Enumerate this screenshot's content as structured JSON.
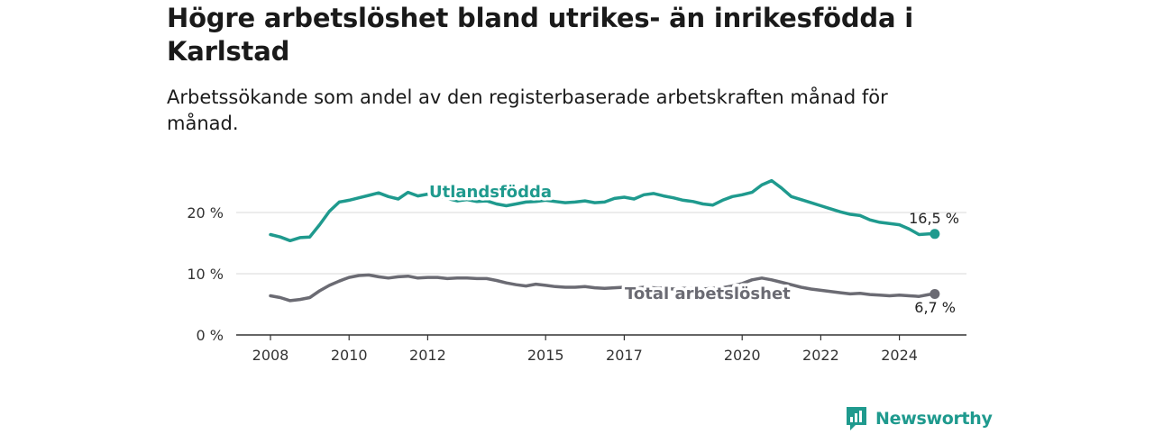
{
  "title": "Högre arbetslöshet bland utrikes- än inrikesfödda i Karlstad",
  "subtitle": "Arbetssökande som andel av den registerbaserade arbetskraften månad för månad.",
  "brand": {
    "name": "Newsworthy",
    "color": "#1f9a8e",
    "icon": "bar-chart-logo-icon"
  },
  "chart_data": {
    "type": "line",
    "title": "Högre arbetslöshet bland utrikes- än inrikesfödda i Karlstad",
    "subtitle": "Arbetssökande som andel av den registerbaserade arbetskraften månad för månad.",
    "xlabel": "",
    "ylabel": "",
    "x_range": [
      2007.75,
      2025.0
    ],
    "ylim": [
      0,
      20
    ],
    "y_ticks": [
      0,
      10,
      20
    ],
    "y_tick_labels": [
      "0 %",
      "10 %",
      "20 %"
    ],
    "x_ticks": [
      2008,
      2010,
      2012,
      2015,
      2017,
      2020,
      2022,
      2024
    ],
    "x_tick_labels": [
      "2008",
      "2010",
      "2012",
      "2015",
      "2017",
      "2020",
      "2022",
      "2024"
    ],
    "grid": true,
    "legend": "none (series labelled directly on the lines)",
    "series": [
      {
        "name": "Utlandsfödda",
        "color": "#1f9a8e",
        "end_label": "16,5 %",
        "points": [
          [
            2008.0,
            16.4
          ],
          [
            2008.25,
            16.0
          ],
          [
            2008.5,
            15.4
          ],
          [
            2008.75,
            15.9
          ],
          [
            2009.0,
            16.0
          ],
          [
            2009.25,
            18.0
          ],
          [
            2009.5,
            20.2
          ],
          [
            2009.75,
            21.7
          ],
          [
            2010.0,
            22.0
          ],
          [
            2010.25,
            22.4
          ],
          [
            2010.5,
            22.8
          ],
          [
            2010.75,
            23.2
          ],
          [
            2011.0,
            22.6
          ],
          [
            2011.25,
            22.2
          ],
          [
            2011.5,
            23.3
          ],
          [
            2011.75,
            22.7
          ],
          [
            2012.0,
            23.0
          ],
          [
            2012.25,
            22.8
          ],
          [
            2012.5,
            22.3
          ],
          [
            2012.75,
            21.9
          ],
          [
            2013.0,
            22.1
          ],
          [
            2013.25,
            21.8
          ],
          [
            2013.5,
            21.9
          ],
          [
            2013.75,
            21.4
          ],
          [
            2014.0,
            21.1
          ],
          [
            2014.25,
            21.4
          ],
          [
            2014.5,
            21.7
          ],
          [
            2014.75,
            21.8
          ],
          [
            2015.0,
            22.0
          ],
          [
            2015.25,
            21.8
          ],
          [
            2015.5,
            21.6
          ],
          [
            2015.75,
            21.7
          ],
          [
            2016.0,
            21.9
          ],
          [
            2016.25,
            21.6
          ],
          [
            2016.5,
            21.7
          ],
          [
            2016.75,
            22.3
          ],
          [
            2017.0,
            22.5
          ],
          [
            2017.25,
            22.2
          ],
          [
            2017.5,
            22.9
          ],
          [
            2017.75,
            23.1
          ],
          [
            2018.0,
            22.7
          ],
          [
            2018.25,
            22.4
          ],
          [
            2018.5,
            22.0
          ],
          [
            2018.75,
            21.8
          ],
          [
            2019.0,
            21.4
          ],
          [
            2019.25,
            21.2
          ],
          [
            2019.5,
            22.0
          ],
          [
            2019.75,
            22.6
          ],
          [
            2020.0,
            22.9
          ],
          [
            2020.25,
            23.3
          ],
          [
            2020.5,
            24.5
          ],
          [
            2020.75,
            25.2
          ],
          [
            2021.0,
            24.0
          ],
          [
            2021.25,
            22.6
          ],
          [
            2021.5,
            22.1
          ],
          [
            2021.75,
            21.6
          ],
          [
            2022.0,
            21.1
          ],
          [
            2022.25,
            20.6
          ],
          [
            2022.5,
            20.1
          ],
          [
            2022.75,
            19.7
          ],
          [
            2023.0,
            19.5
          ],
          [
            2023.25,
            18.8
          ],
          [
            2023.5,
            18.4
          ],
          [
            2023.75,
            18.2
          ],
          [
            2024.0,
            18.0
          ],
          [
            2024.25,
            17.3
          ],
          [
            2024.5,
            16.4
          ],
          [
            2024.75,
            16.5
          ],
          [
            2024.9,
            16.5
          ]
        ]
      },
      {
        "name": "Total arbetslöshet",
        "color": "#6b6b73",
        "end_label": "6,7 %",
        "points": [
          [
            2008.0,
            6.4
          ],
          [
            2008.25,
            6.1
          ],
          [
            2008.5,
            5.6
          ],
          [
            2008.75,
            5.8
          ],
          [
            2009.0,
            6.1
          ],
          [
            2009.25,
            7.2
          ],
          [
            2009.5,
            8.1
          ],
          [
            2009.75,
            8.8
          ],
          [
            2010.0,
            9.4
          ],
          [
            2010.25,
            9.7
          ],
          [
            2010.5,
            9.8
          ],
          [
            2010.75,
            9.5
          ],
          [
            2011.0,
            9.3
          ],
          [
            2011.25,
            9.5
          ],
          [
            2011.5,
            9.6
          ],
          [
            2011.75,
            9.3
          ],
          [
            2012.0,
            9.4
          ],
          [
            2012.25,
            9.4
          ],
          [
            2012.5,
            9.2
          ],
          [
            2012.75,
            9.3
          ],
          [
            2013.0,
            9.3
          ],
          [
            2013.25,
            9.2
          ],
          [
            2013.5,
            9.2
          ],
          [
            2013.75,
            8.9
          ],
          [
            2014.0,
            8.5
          ],
          [
            2014.25,
            8.2
          ],
          [
            2014.5,
            8.0
          ],
          [
            2014.75,
            8.3
          ],
          [
            2015.0,
            8.1
          ],
          [
            2015.25,
            7.9
          ],
          [
            2015.5,
            7.8
          ],
          [
            2015.75,
            7.8
          ],
          [
            2016.0,
            7.9
          ],
          [
            2016.25,
            7.7
          ],
          [
            2016.5,
            7.6
          ],
          [
            2016.75,
            7.7
          ],
          [
            2017.0,
            7.8
          ],
          [
            2017.25,
            7.6
          ],
          [
            2017.5,
            7.8
          ],
          [
            2017.75,
            7.7
          ],
          [
            2018.0,
            7.6
          ],
          [
            2018.25,
            7.5
          ],
          [
            2018.5,
            7.6
          ],
          [
            2018.75,
            7.6
          ],
          [
            2019.0,
            7.5
          ],
          [
            2019.25,
            7.6
          ],
          [
            2019.5,
            7.7
          ],
          [
            2019.75,
            8.0
          ],
          [
            2020.0,
            8.4
          ],
          [
            2020.25,
            9.0
          ],
          [
            2020.5,
            9.3
          ],
          [
            2020.75,
            9.0
          ],
          [
            2021.0,
            8.6
          ],
          [
            2021.25,
            8.2
          ],
          [
            2021.5,
            7.8
          ],
          [
            2021.75,
            7.5
          ],
          [
            2022.0,
            7.3
          ],
          [
            2022.25,
            7.1
          ],
          [
            2022.5,
            6.9
          ],
          [
            2022.75,
            6.7
          ],
          [
            2023.0,
            6.8
          ],
          [
            2023.25,
            6.6
          ],
          [
            2023.5,
            6.5
          ],
          [
            2023.75,
            6.4
          ],
          [
            2024.0,
            6.5
          ],
          [
            2024.25,
            6.4
          ],
          [
            2024.5,
            6.3
          ],
          [
            2024.75,
            6.6
          ],
          [
            2024.9,
            6.7
          ]
        ]
      }
    ]
  }
}
